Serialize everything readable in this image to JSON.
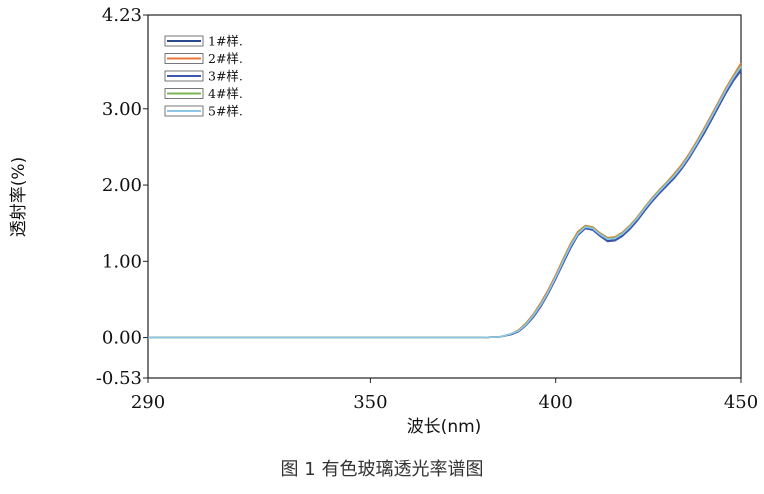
{
  "caption": "图 1   有色玻璃透光率谱图",
  "chart_data": {
    "type": "line",
    "title": "",
    "xlabel": "波长(nm)",
    "ylabel": "透射率(%)",
    "xlim": [
      290,
      450
    ],
    "ylim": [
      -0.53,
      4.23
    ],
    "x_tick_labels": [
      {
        "value": 290,
        "label": "290"
      },
      {
        "value": 350,
        "label": "350"
      },
      {
        "value": 400,
        "label": "400"
      },
      {
        "value": 450,
        "label": "450"
      }
    ],
    "y_tick_labels": [
      {
        "value": 4.23,
        "label": "4.23"
      },
      {
        "value": 3.0,
        "label": "3.00"
      },
      {
        "value": 2.0,
        "label": "2.00"
      },
      {
        "value": 1.0,
        "label": "1.00"
      },
      {
        "value": 0.0,
        "label": "0.00"
      },
      {
        "value": -0.53,
        "label": "-0.53"
      }
    ],
    "legend_position": "top-left",
    "grid": false,
    "x": [
      290,
      300,
      310,
      320,
      330,
      340,
      350,
      360,
      370,
      375,
      380,
      385,
      388,
      390,
      392,
      394,
      396,
      398,
      400,
      402,
      404,
      406,
      408,
      410,
      412,
      414,
      416,
      418,
      420,
      422,
      424,
      426,
      428,
      430,
      432,
      434,
      436,
      438,
      440,
      442,
      444,
      446,
      448,
      450
    ],
    "series": [
      {
        "name": "1#样.",
        "color": "#2a4a8a",
        "values": [
          0,
          0,
          0,
          0,
          0,
          0,
          0,
          0,
          0,
          0,
          0,
          0.01,
          0.04,
          0.08,
          0.16,
          0.27,
          0.41,
          0.58,
          0.77,
          0.98,
          1.18,
          1.35,
          1.44,
          1.42,
          1.34,
          1.27,
          1.28,
          1.34,
          1.43,
          1.54,
          1.67,
          1.79,
          1.9,
          2.0,
          2.1,
          2.22,
          2.36,
          2.52,
          2.68,
          2.86,
          3.04,
          3.22,
          3.38,
          3.52
        ]
      },
      {
        "name": "2#样.",
        "color": "#e8773a",
        "values": [
          0,
          0,
          0,
          0,
          0,
          0,
          0,
          0,
          0,
          0,
          0,
          0.01,
          0.05,
          0.1,
          0.19,
          0.31,
          0.46,
          0.63,
          0.82,
          1.03,
          1.23,
          1.39,
          1.47,
          1.45,
          1.37,
          1.31,
          1.32,
          1.38,
          1.47,
          1.58,
          1.71,
          1.83,
          1.94,
          2.04,
          2.15,
          2.27,
          2.41,
          2.57,
          2.74,
          2.92,
          3.1,
          3.28,
          3.44,
          3.6
        ]
      },
      {
        "name": "3#样.",
        "color": "#3d56b0",
        "values": [
          0,
          0,
          0,
          0,
          0,
          0,
          0,
          0,
          0,
          0,
          0,
          0.01,
          0.04,
          0.08,
          0.16,
          0.27,
          0.41,
          0.58,
          0.77,
          0.97,
          1.17,
          1.34,
          1.43,
          1.41,
          1.33,
          1.26,
          1.27,
          1.33,
          1.42,
          1.53,
          1.66,
          1.78,
          1.89,
          1.99,
          2.09,
          2.21,
          2.35,
          2.51,
          2.67,
          2.85,
          3.03,
          3.21,
          3.37,
          3.5
        ]
      },
      {
        "name": "4#样.",
        "color": "#7bb553",
        "values": [
          0,
          0,
          0,
          0,
          0,
          0,
          0,
          0,
          0,
          0,
          0,
          0.01,
          0.05,
          0.09,
          0.18,
          0.3,
          0.44,
          0.61,
          0.8,
          1.01,
          1.21,
          1.37,
          1.46,
          1.44,
          1.36,
          1.3,
          1.31,
          1.37,
          1.46,
          1.57,
          1.7,
          1.82,
          1.93,
          2.03,
          2.13,
          2.25,
          2.39,
          2.55,
          2.72,
          2.9,
          3.08,
          3.26,
          3.42,
          3.57
        ]
      },
      {
        "name": "5#样.",
        "color": "#8fc6e6",
        "values": [
          0,
          0,
          0,
          0,
          0,
          0,
          0,
          0,
          0,
          0,
          0,
          0.01,
          0.05,
          0.09,
          0.17,
          0.29,
          0.43,
          0.6,
          0.79,
          1.0,
          1.2,
          1.36,
          1.45,
          1.43,
          1.35,
          1.29,
          1.3,
          1.36,
          1.45,
          1.56,
          1.69,
          1.81,
          1.92,
          2.02,
          2.12,
          2.24,
          2.38,
          2.54,
          2.71,
          2.89,
          3.07,
          3.25,
          3.41,
          3.55
        ]
      }
    ]
  }
}
